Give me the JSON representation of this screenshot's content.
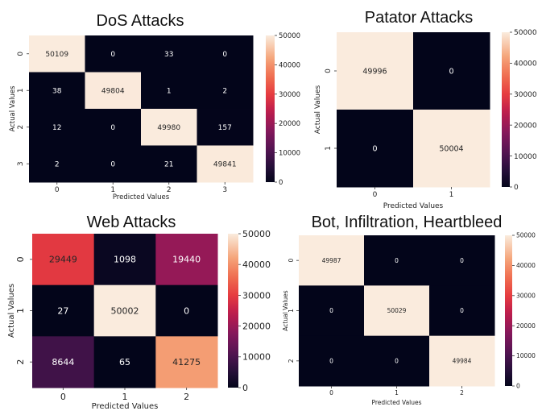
{
  "chart_data": [
    {
      "type": "heatmap",
      "title": "DoS Attacks",
      "xlabel": "Predicted Values",
      "ylabel": "Actual Values",
      "x_ticks": [
        "0",
        "1",
        "2",
        "3"
      ],
      "y_ticks": [
        "0",
        "1",
        "2",
        "3"
      ],
      "values": [
        [
          50109,
          0,
          33,
          0
        ],
        [
          38,
          49804,
          1,
          2
        ],
        [
          12,
          0,
          49980,
          157
        ],
        [
          2,
          0,
          21,
          49841
        ]
      ],
      "colorbar": {
        "range": [
          0,
          50000
        ],
        "ticks": [
          0,
          10000,
          20000,
          30000,
          40000,
          50000
        ]
      },
      "colormap": "rocket"
    },
    {
      "type": "heatmap",
      "title": "Patator Attacks",
      "xlabel": "Predicted Values",
      "ylabel": "Actual Values",
      "x_ticks": [
        "0",
        "1"
      ],
      "y_ticks": [
        "0",
        "1"
      ],
      "values": [
        [
          49996,
          0
        ],
        [
          0,
          50004
        ]
      ],
      "colorbar": {
        "range": [
          0,
          50000
        ],
        "ticks": [
          0,
          10000,
          20000,
          30000,
          40000,
          50000
        ]
      },
      "colormap": "rocket"
    },
    {
      "type": "heatmap",
      "title": "Web Attacks",
      "xlabel": "Predicted Values",
      "ylabel": "Actual Values",
      "x_ticks": [
        "0",
        "1",
        "2"
      ],
      "y_ticks": [
        "0",
        "1",
        "2"
      ],
      "values": [
        [
          29449,
          1098,
          19440
        ],
        [
          27,
          50002,
          0
        ],
        [
          8644,
          65,
          41275
        ]
      ],
      "colorbar": {
        "range": [
          0,
          50000
        ],
        "ticks": [
          0,
          10000,
          20000,
          30000,
          40000,
          50000
        ]
      },
      "colormap": "rocket"
    },
    {
      "type": "heatmap",
      "title": "Bot, Infiltration, Heartbleed",
      "xlabel": "Predicted Values",
      "ylabel": "Actual Values",
      "x_ticks": [
        "0",
        "1",
        "2"
      ],
      "y_ticks": [
        "0",
        "1",
        "2"
      ],
      "values": [
        [
          49987,
          0,
          0
        ],
        [
          0,
          50029,
          0
        ],
        [
          0,
          0,
          49984
        ]
      ],
      "colorbar": {
        "range": [
          0,
          50000
        ],
        "ticks": [
          0,
          10000,
          20000,
          30000,
          40000,
          50000
        ]
      },
      "colormap": "rocket"
    }
  ]
}
